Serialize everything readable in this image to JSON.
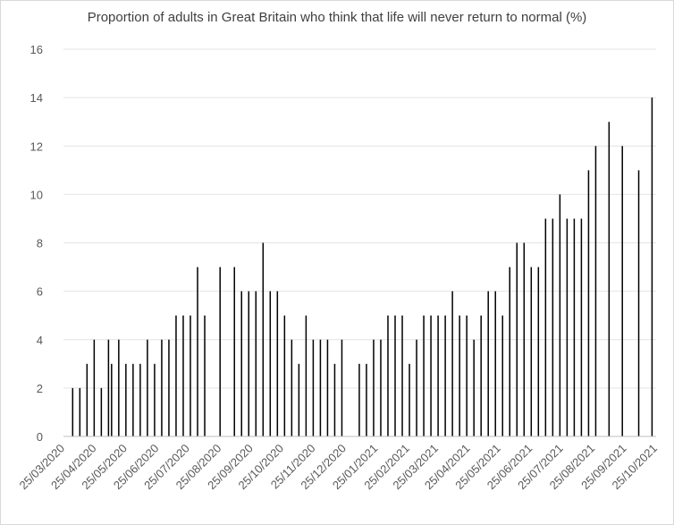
{
  "chart_data": {
    "type": "bar",
    "title": "Proportion of adults in Great Britain who think that life will never return to normal (%)",
    "ylim": [
      0,
      16
    ],
    "yticks": [
      0,
      2,
      4,
      6,
      8,
      10,
      12,
      14,
      16
    ],
    "xlim": [
      "2020-03-25",
      "2021-10-25"
    ],
    "xticks": [
      "25/03/2020",
      "25/04/2020",
      "25/05/2020",
      "25/06/2020",
      "25/07/2020",
      "25/08/2020",
      "25/09/2020",
      "25/10/2020",
      "25/11/2020",
      "25/12/2020",
      "25/01/2021",
      "25/02/2021",
      "25/03/2021",
      "25/04/2021",
      "25/05/2021",
      "25/06/2021",
      "25/07/2021",
      "25/08/2021",
      "25/09/2021",
      "25/10/2021"
    ],
    "grid": true,
    "legend": "none",
    "bar_color": "#000000",
    "points": [
      {
        "date": "2020-04-03",
        "value": 2
      },
      {
        "date": "2020-04-10",
        "value": 2
      },
      {
        "date": "2020-04-17",
        "value": 3
      },
      {
        "date": "2020-04-24",
        "value": 4
      },
      {
        "date": "2020-05-01",
        "value": 2
      },
      {
        "date": "2020-05-08",
        "value": 4
      },
      {
        "date": "2020-05-11",
        "value": 3
      },
      {
        "date": "2020-05-18",
        "value": 4
      },
      {
        "date": "2020-05-25",
        "value": 3
      },
      {
        "date": "2020-06-01",
        "value": 3
      },
      {
        "date": "2020-06-08",
        "value": 3
      },
      {
        "date": "2020-06-15",
        "value": 4
      },
      {
        "date": "2020-06-22",
        "value": 3
      },
      {
        "date": "2020-06-29",
        "value": 4
      },
      {
        "date": "2020-07-06",
        "value": 4
      },
      {
        "date": "2020-07-13",
        "value": 5
      },
      {
        "date": "2020-07-20",
        "value": 5
      },
      {
        "date": "2020-07-27",
        "value": 5
      },
      {
        "date": "2020-08-03",
        "value": 7
      },
      {
        "date": "2020-08-10",
        "value": 5
      },
      {
        "date": "2020-08-25",
        "value": 7
      },
      {
        "date": "2020-09-08",
        "value": 7
      },
      {
        "date": "2020-09-15",
        "value": 6
      },
      {
        "date": "2020-09-22",
        "value": 6
      },
      {
        "date": "2020-09-29",
        "value": 6
      },
      {
        "date": "2020-10-06",
        "value": 8
      },
      {
        "date": "2020-10-13",
        "value": 6
      },
      {
        "date": "2020-10-20",
        "value": 6
      },
      {
        "date": "2020-10-27",
        "value": 5
      },
      {
        "date": "2020-11-03",
        "value": 4
      },
      {
        "date": "2020-11-10",
        "value": 3
      },
      {
        "date": "2020-11-17",
        "value": 5
      },
      {
        "date": "2020-11-24",
        "value": 4
      },
      {
        "date": "2020-12-01",
        "value": 4
      },
      {
        "date": "2020-12-08",
        "value": 4
      },
      {
        "date": "2020-12-15",
        "value": 3
      },
      {
        "date": "2020-12-22",
        "value": 4
      },
      {
        "date": "2021-01-08",
        "value": 3
      },
      {
        "date": "2021-01-15",
        "value": 3
      },
      {
        "date": "2021-01-22",
        "value": 4
      },
      {
        "date": "2021-01-29",
        "value": 4
      },
      {
        "date": "2021-02-05",
        "value": 5
      },
      {
        "date": "2021-02-12",
        "value": 5
      },
      {
        "date": "2021-02-19",
        "value": 5
      },
      {
        "date": "2021-02-26",
        "value": 3
      },
      {
        "date": "2021-03-05",
        "value": 4
      },
      {
        "date": "2021-03-12",
        "value": 5
      },
      {
        "date": "2021-03-19",
        "value": 5
      },
      {
        "date": "2021-03-26",
        "value": 5
      },
      {
        "date": "2021-04-02",
        "value": 5
      },
      {
        "date": "2021-04-09",
        "value": 6
      },
      {
        "date": "2021-04-16",
        "value": 5
      },
      {
        "date": "2021-04-23",
        "value": 5
      },
      {
        "date": "2021-04-30",
        "value": 4
      },
      {
        "date": "2021-05-07",
        "value": 5
      },
      {
        "date": "2021-05-14",
        "value": 6
      },
      {
        "date": "2021-05-21",
        "value": 6
      },
      {
        "date": "2021-05-28",
        "value": 5
      },
      {
        "date": "2021-06-04",
        "value": 7
      },
      {
        "date": "2021-06-11",
        "value": 8
      },
      {
        "date": "2021-06-18",
        "value": 8
      },
      {
        "date": "2021-06-25",
        "value": 7
      },
      {
        "date": "2021-07-02",
        "value": 7
      },
      {
        "date": "2021-07-09",
        "value": 9
      },
      {
        "date": "2021-07-16",
        "value": 9
      },
      {
        "date": "2021-07-23",
        "value": 10
      },
      {
        "date": "2021-07-30",
        "value": 9
      },
      {
        "date": "2021-08-06",
        "value": 9
      },
      {
        "date": "2021-08-13",
        "value": 9
      },
      {
        "date": "2021-08-20",
        "value": 11
      },
      {
        "date": "2021-08-27",
        "value": 12
      },
      {
        "date": "2021-09-09",
        "value": 13
      },
      {
        "date": "2021-09-22",
        "value": 12
      },
      {
        "date": "2021-10-08",
        "value": 11
      },
      {
        "date": "2021-10-21",
        "value": 14
      }
    ]
  }
}
